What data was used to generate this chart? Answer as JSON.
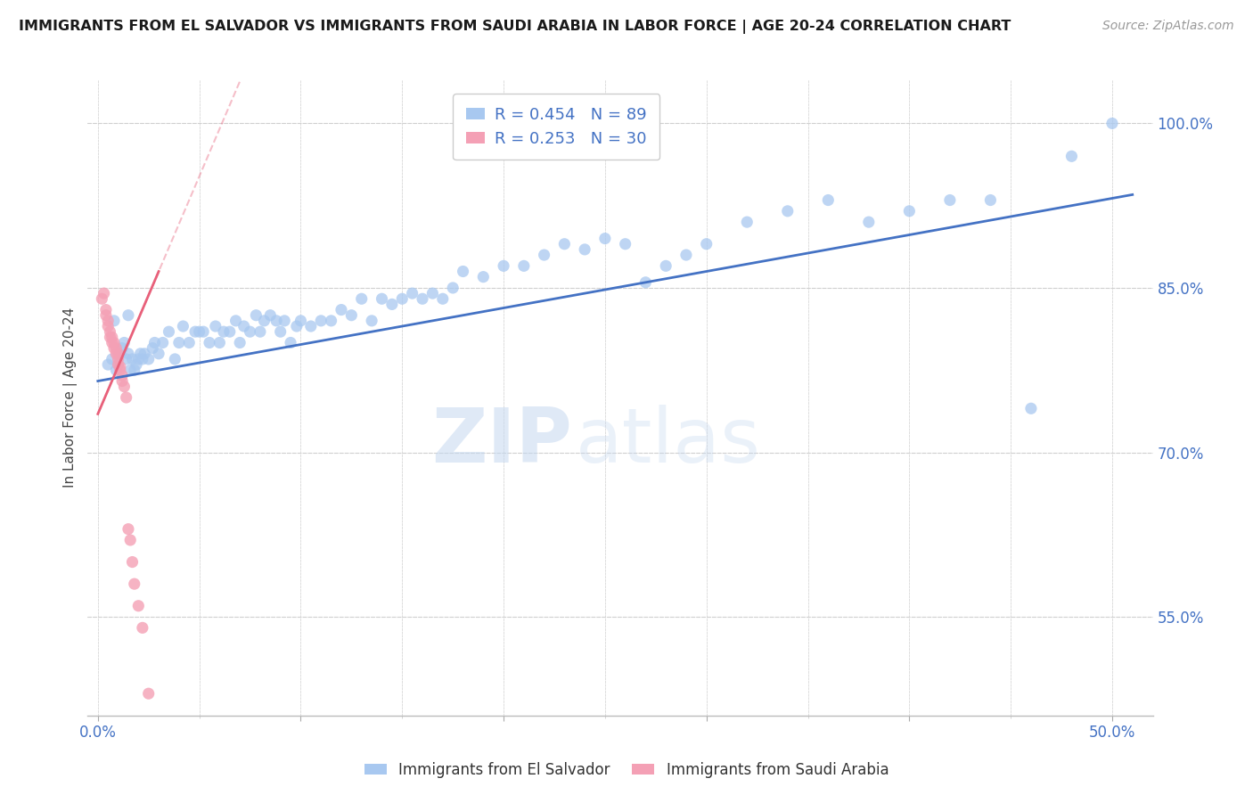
{
  "title": "IMMIGRANTS FROM EL SALVADOR VS IMMIGRANTS FROM SAUDI ARABIA IN LABOR FORCE | AGE 20-24 CORRELATION CHART",
  "source": "Source: ZipAtlas.com",
  "ylabel": "In Labor Force | Age 20-24",
  "xlim": [
    -0.005,
    0.52
  ],
  "ylim": [
    0.46,
    1.04
  ],
  "el_salvador_color": "#a8c8f0",
  "saudi_arabia_color": "#f4a0b5",
  "el_salvador_line_color": "#4472c4",
  "saudi_arabia_line_color": "#e8607a",
  "R_el_salvador": 0.454,
  "N_el_salvador": 89,
  "R_saudi_arabia": 0.253,
  "N_saudi_arabia": 30,
  "legend_label_1": "Immigrants from El Salvador",
  "legend_label_2": "Immigrants from Saudi Arabia",
  "watermark_zip": "ZIP",
  "watermark_atlas": "atlas",
  "background_color": "#ffffff",
  "grid_color": "#d0d0d0",
  "axis_label_color": "#4472c4",
  "title_color": "#1a1a1a",
  "es_line_x0": 0.0,
  "es_line_y0": 0.765,
  "es_line_x1": 0.51,
  "es_line_y1": 0.935,
  "sa_line_x0": 0.0,
  "sa_line_y0": 0.735,
  "sa_line_x1": 0.03,
  "sa_line_y1": 0.865,
  "el_salvador_pts_x": [
    0.005,
    0.007,
    0.008,
    0.009,
    0.01,
    0.011,
    0.012,
    0.013,
    0.014,
    0.015,
    0.015,
    0.016,
    0.017,
    0.018,
    0.019,
    0.02,
    0.021,
    0.022,
    0.023,
    0.025,
    0.027,
    0.028,
    0.03,
    0.032,
    0.035,
    0.038,
    0.04,
    0.042,
    0.045,
    0.048,
    0.05,
    0.052,
    0.055,
    0.058,
    0.06,
    0.062,
    0.065,
    0.068,
    0.07,
    0.072,
    0.075,
    0.078,
    0.08,
    0.082,
    0.085,
    0.088,
    0.09,
    0.092,
    0.095,
    0.098,
    0.1,
    0.105,
    0.11,
    0.115,
    0.12,
    0.125,
    0.13,
    0.135,
    0.14,
    0.145,
    0.15,
    0.155,
    0.16,
    0.165,
    0.17,
    0.175,
    0.18,
    0.19,
    0.2,
    0.21,
    0.22,
    0.23,
    0.24,
    0.25,
    0.26,
    0.27,
    0.28,
    0.29,
    0.3,
    0.32,
    0.34,
    0.36,
    0.38,
    0.4,
    0.42,
    0.44,
    0.46,
    0.48,
    0.5
  ],
  "el_salvador_pts_y": [
    0.78,
    0.785,
    0.82,
    0.775,
    0.78,
    0.79,
    0.795,
    0.8,
    0.785,
    0.79,
    0.825,
    0.775,
    0.785,
    0.775,
    0.78,
    0.785,
    0.79,
    0.785,
    0.79,
    0.785,
    0.795,
    0.8,
    0.79,
    0.8,
    0.81,
    0.785,
    0.8,
    0.815,
    0.8,
    0.81,
    0.81,
    0.81,
    0.8,
    0.815,
    0.8,
    0.81,
    0.81,
    0.82,
    0.8,
    0.815,
    0.81,
    0.825,
    0.81,
    0.82,
    0.825,
    0.82,
    0.81,
    0.82,
    0.8,
    0.815,
    0.82,
    0.815,
    0.82,
    0.82,
    0.83,
    0.825,
    0.84,
    0.82,
    0.84,
    0.835,
    0.84,
    0.845,
    0.84,
    0.845,
    0.84,
    0.85,
    0.865,
    0.86,
    0.87,
    0.87,
    0.88,
    0.89,
    0.885,
    0.895,
    0.89,
    0.855,
    0.87,
    0.88,
    0.89,
    0.91,
    0.92,
    0.93,
    0.91,
    0.92,
    0.93,
    0.93,
    0.74,
    0.97,
    1.0
  ],
  "saudi_arabia_pts_x": [
    0.002,
    0.003,
    0.004,
    0.004,
    0.005,
    0.005,
    0.006,
    0.006,
    0.007,
    0.007,
    0.008,
    0.008,
    0.009,
    0.009,
    0.01,
    0.01,
    0.01,
    0.011,
    0.011,
    0.012,
    0.012,
    0.013,
    0.014,
    0.015,
    0.016,
    0.017,
    0.018,
    0.02,
    0.022,
    0.025
  ],
  "saudi_arabia_pts_y": [
    0.84,
    0.845,
    0.83,
    0.825,
    0.82,
    0.815,
    0.81,
    0.805,
    0.805,
    0.8,
    0.8,
    0.795,
    0.795,
    0.79,
    0.79,
    0.785,
    0.78,
    0.778,
    0.775,
    0.77,
    0.765,
    0.76,
    0.75,
    0.63,
    0.62,
    0.6,
    0.58,
    0.56,
    0.54,
    0.48
  ]
}
